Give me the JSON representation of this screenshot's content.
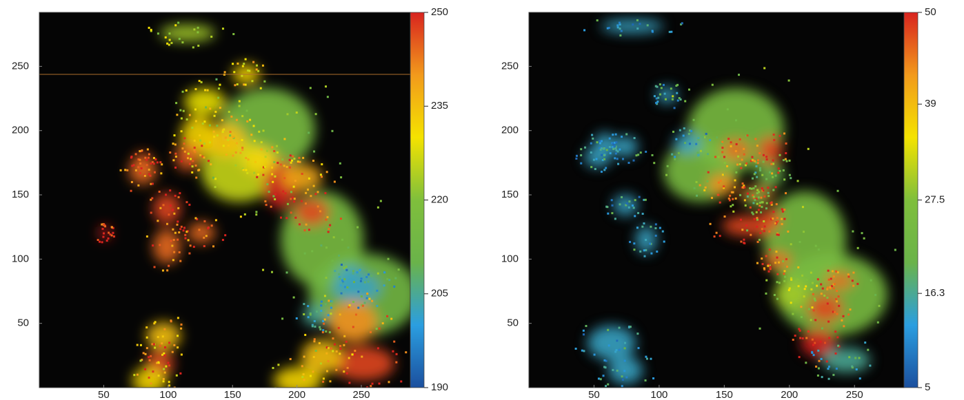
{
  "chart_data": [
    {
      "type": "heatmap",
      "xlim": [
        0,
        288
      ],
      "ylim": [
        0,
        292
      ],
      "xticks": [
        50,
        100,
        150,
        200,
        250
      ],
      "yticks": [
        50,
        100,
        150,
        200,
        250
      ],
      "colorbar": {
        "lim": [
          190,
          250
        ],
        "ticks": [
          190,
          205,
          220,
          235,
          250
        ]
      },
      "colormap": [
        "#1b4f9e",
        "#2b9ee0",
        "#6ab34a",
        "#7fbf3c",
        "#f4e300",
        "#f29a1c",
        "#d8231f"
      ]
    },
    {
      "type": "heatmap",
      "xlim": [
        0,
        288
      ],
      "ylim": [
        0,
        292
      ],
      "xticks": [
        50,
        100,
        150,
        200,
        250
      ],
      "yticks": [
        50,
        100,
        150,
        200,
        250
      ],
      "colorbar": {
        "lim": [
          5,
          50
        ],
        "ticks": [
          5,
          16.3,
          27.5,
          39,
          50
        ]
      },
      "colormap": [
        "#1b4f9e",
        "#2b9ee0",
        "#6ab34a",
        "#7fbf3c",
        "#f4e300",
        "#f29a1c",
        "#d8231f"
      ]
    }
  ]
}
